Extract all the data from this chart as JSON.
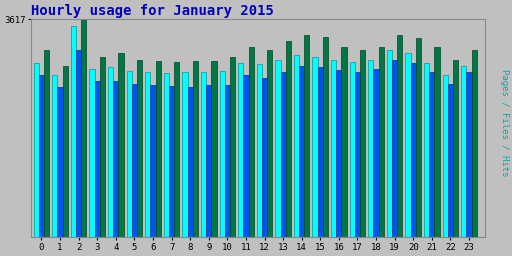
{
  "title": "Hourly usage for January 2015",
  "hours": [
    0,
    1,
    2,
    3,
    4,
    5,
    6,
    7,
    8,
    9,
    10,
    11,
    12,
    13,
    14,
    15,
    16,
    17,
    18,
    19,
    20,
    21,
    22,
    23
  ],
  "pages": [
    2900,
    2700,
    3500,
    2800,
    2820,
    2760,
    2740,
    2720,
    2740,
    2740,
    2760,
    2900,
    2870,
    2950,
    3020,
    3000,
    2940,
    2910,
    2940,
    3100,
    3050,
    2900,
    2700,
    2850
  ],
  "files": [
    2700,
    2500,
    3100,
    2600,
    2600,
    2550,
    2530,
    2510,
    2500,
    2530,
    2530,
    2700,
    2650,
    2750,
    2850,
    2830,
    2770,
    2750,
    2800,
    2950,
    2900,
    2750,
    2550,
    2750
  ],
  "hits": [
    3100,
    2850,
    3617,
    3000,
    3050,
    2950,
    2930,
    2910,
    2930,
    2930,
    3000,
    3150,
    3100,
    3250,
    3350,
    3330,
    3150,
    3100,
    3150,
    3350,
    3300,
    3150,
    2950,
    3100
  ],
  "color_pages": "#00FFFF",
  "color_files": "#0055EE",
  "color_hits": "#007744",
  "color_bg": "#C0C0C0",
  "color_plot_bg": "#C0C0C0",
  "ymax": 3617,
  "ymin": 0,
  "ylabel_right": "Pages / Files / Hits",
  "bar_width": 0.28,
  "title_color": "#0000BB",
  "edge_pages": "#009999",
  "edge_files": "#003399",
  "edge_hits": "#004422"
}
